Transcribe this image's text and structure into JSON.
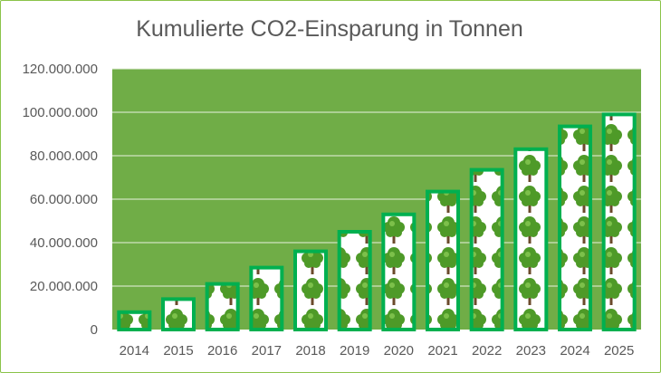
{
  "chart_data": {
    "type": "bar",
    "title": "Kumulierte CO2-Einsparung in Tonnen",
    "xlabel": "",
    "ylabel": "",
    "categories": [
      "2014",
      "2015",
      "2016",
      "2017",
      "2018",
      "2019",
      "2020",
      "2021",
      "2022",
      "2023",
      "2024",
      "2025"
    ],
    "values": [
      8000000,
      14000000,
      21000000,
      28500000,
      36000000,
      45000000,
      53000000,
      63500000,
      73500000,
      83000000,
      93500000,
      99000000
    ],
    "ylim": [
      0,
      120000000
    ],
    "yticks": [
      0,
      20000000,
      40000000,
      60000000,
      80000000,
      100000000,
      120000000
    ],
    "ytick_labels": [
      "0",
      "20.000.000",
      "40.000.000",
      "60.000.000",
      "80.000.000",
      "100.000.000",
      "120.000.000"
    ],
    "grid": true,
    "legend": "none",
    "colors": {
      "plot_background": "#70ad47",
      "bar_border": "#00b050",
      "bar_fill": "#ffffff",
      "gridline": "#e8f1df",
      "tree_foliage": "#4e9a28",
      "tree_trunk": "#6b4a2b"
    },
    "bar_fill_icon": "tree-icon"
  }
}
